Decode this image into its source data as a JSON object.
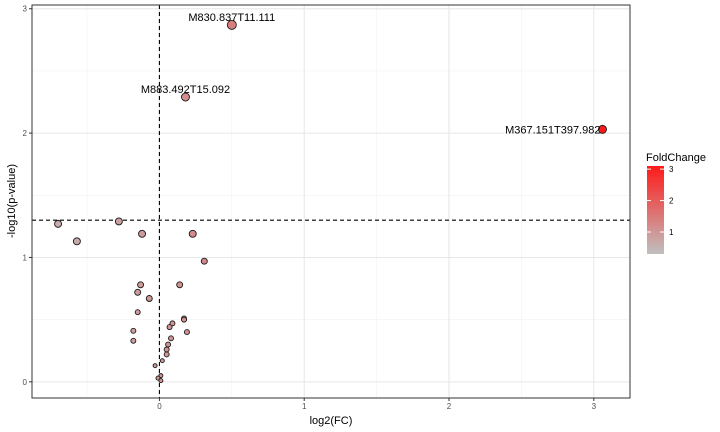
{
  "chart_data": {
    "type": "scatter",
    "xlabel": "log2(FC)",
    "ylabel": "-log10(p-value)",
    "xlim": [
      -0.88,
      3.25
    ],
    "ylim": [
      -0.13,
      3.03
    ],
    "x_ticks": [
      0,
      1,
      2,
      3
    ],
    "y_ticks": [
      0,
      1,
      2,
      3
    ],
    "grid": true,
    "threshold_lines": {
      "x": 0,
      "y": 1.3
    },
    "legend": {
      "title": "FoldChange",
      "placement": "right",
      "range": [
        0.3,
        3.1
      ],
      "ticks": [
        1,
        2,
        3
      ],
      "colors": [
        "#c0c0c0",
        "#ff1a1a"
      ]
    },
    "points": [
      {
        "x": 0.5,
        "y": 2.87,
        "fc": 1.41,
        "size": 9,
        "label": "M830.837T11.111"
      },
      {
        "x": 0.18,
        "y": 2.29,
        "fc": 1.13,
        "size": 8,
        "label": "M883.492T15.092"
      },
      {
        "x": 3.06,
        "y": 2.03,
        "fc": 8.34,
        "size": 8,
        "label": "M367.151T397.982"
      },
      {
        "x": -0.7,
        "y": 1.27,
        "fc": 0.62,
        "size": 7
      },
      {
        "x": -0.57,
        "y": 1.13,
        "fc": 0.67,
        "size": 7
      },
      {
        "x": -0.28,
        "y": 1.29,
        "fc": 0.82,
        "size": 7
      },
      {
        "x": -0.12,
        "y": 1.19,
        "fc": 0.92,
        "size": 7
      },
      {
        "x": 0.23,
        "y": 1.19,
        "fc": 1.17,
        "size": 7
      },
      {
        "x": 0.31,
        "y": 0.97,
        "fc": 1.24,
        "size": 6
      },
      {
        "x": 0.14,
        "y": 0.78,
        "fc": 1.1,
        "size": 6
      },
      {
        "x": -0.13,
        "y": 0.78,
        "fc": 0.91,
        "size": 6
      },
      {
        "x": -0.15,
        "y": 0.72,
        "fc": 0.9,
        "size": 6
      },
      {
        "x": -0.07,
        "y": 0.67,
        "fc": 0.95,
        "size": 6
      },
      {
        "x": -0.15,
        "y": 0.56,
        "fc": 0.9,
        "size": 5
      },
      {
        "x": 0.17,
        "y": 0.51,
        "fc": 1.12,
        "size": 5
      },
      {
        "x": 0.17,
        "y": 0.5,
        "fc": 1.12,
        "size": 5
      },
      {
        "x": 0.09,
        "y": 0.47,
        "fc": 1.06,
        "size": 5
      },
      {
        "x": 0.07,
        "y": 0.44,
        "fc": 1.05,
        "size": 5
      },
      {
        "x": 0.19,
        "y": 0.4,
        "fc": 1.14,
        "size": 5
      },
      {
        "x": -0.18,
        "y": 0.41,
        "fc": 0.88,
        "size": 5
      },
      {
        "x": -0.18,
        "y": 0.33,
        "fc": 0.88,
        "size": 5
      },
      {
        "x": 0.08,
        "y": 0.35,
        "fc": 1.06,
        "size": 5
      },
      {
        "x": 0.06,
        "y": 0.3,
        "fc": 1.04,
        "size": 5
      },
      {
        "x": 0.05,
        "y": 0.26,
        "fc": 1.04,
        "size": 5
      },
      {
        "x": 0.05,
        "y": 0.22,
        "fc": 1.04,
        "size": 5
      },
      {
        "x": 0.02,
        "y": 0.17,
        "fc": 1.01,
        "size": 4
      },
      {
        "x": -0.03,
        "y": 0.13,
        "fc": 0.98,
        "size": 4
      },
      {
        "x": 0.01,
        "y": 0.05,
        "fc": 1.01,
        "size": 4
      },
      {
        "x": -0.01,
        "y": 0.03,
        "fc": 0.99,
        "size": 4
      },
      {
        "x": 0.01,
        "y": 0.01,
        "fc": 1.01,
        "size": 4
      }
    ]
  }
}
